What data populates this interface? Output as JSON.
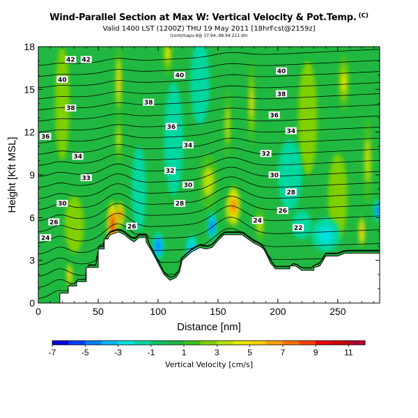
{
  "title": "Wind-Parallel Section at Max W: Vertical Velocity & Pot.Temp.",
  "title_mark": "(C)",
  "subtitle": "Valid 1400 LST (1200Z) THU 19 May 2011 [18hrFcst@2159z]",
  "subtitle_small": "(cont/mapv-9@ 37.94,-98.94 211 dm",
  "chart_data": {
    "type": "heatmap",
    "title": "Wind-Parallel Section at Max W: Vertical Velocity & Pot.Temp.",
    "xlabel": "Distance [nm]",
    "ylabel": "Height [Kft MSL]",
    "xlim": [
      0,
      285
    ],
    "ylim": [
      0,
      18
    ],
    "xticks": [
      0,
      50,
      100,
      150,
      200,
      250
    ],
    "yticks": [
      0,
      3,
      6,
      9,
      12,
      15,
      18
    ],
    "colorbar": {
      "label": "Vertical Velocity [cm/s]",
      "ticks": [
        -7,
        -5,
        -3,
        -1,
        1,
        3,
        5,
        7,
        9,
        11
      ],
      "range": [
        -7,
        12
      ],
      "colors": [
        "#0000e0",
        "#0040ff",
        "#0080ff",
        "#00b8ff",
        "#00e0e0",
        "#00d8a0",
        "#10c060",
        "#20b840",
        "#40c020",
        "#80d000",
        "#b8e000",
        "#e8e800",
        "#ffd000",
        "#ffa000",
        "#ff7000",
        "#ff4000",
        "#e80000",
        "#c80000",
        "#b00030"
      ]
    },
    "terrain": [
      [
        0,
        0
      ],
      [
        18,
        0
      ],
      [
        18,
        0.7
      ],
      [
        25,
        0.7
      ],
      [
        25,
        1.2
      ],
      [
        32,
        1.2
      ],
      [
        32,
        1.5
      ],
      [
        40,
        1.5
      ],
      [
        40,
        2.5
      ],
      [
        50,
        2.5
      ],
      [
        50,
        3.8
      ],
      [
        55,
        3.8
      ],
      [
        55,
        4.5
      ],
      [
        58,
        4.5
      ],
      [
        60,
        4.8
      ],
      [
        67,
        5.0
      ],
      [
        72,
        4.8
      ],
      [
        76,
        4.5
      ],
      [
        80,
        4.3
      ],
      [
        84,
        4.6
      ],
      [
        90,
        4.6
      ],
      [
        90,
        4.3
      ],
      [
        95,
        3.6
      ],
      [
        100,
        2.8
      ],
      [
        105,
        2.0
      ],
      [
        110,
        1.6
      ],
      [
        115,
        1.8
      ],
      [
        118,
        2.2
      ],
      [
        120,
        3.0
      ],
      [
        128,
        3.6
      ],
      [
        135,
        3.9
      ],
      [
        140,
        3.8
      ],
      [
        145,
        3.9
      ],
      [
        150,
        4.4
      ],
      [
        155,
        4.8
      ],
      [
        160,
        4.8
      ],
      [
        170,
        4.8
      ],
      [
        175,
        4.5
      ],
      [
        180,
        4.2
      ],
      [
        185,
        4.0
      ],
      [
        188,
        3.8
      ],
      [
        190,
        3.5
      ],
      [
        194,
        2.8
      ],
      [
        198,
        2.4
      ],
      [
        210,
        2.4
      ],
      [
        210,
        2.6
      ],
      [
        215,
        2.6
      ],
      [
        220,
        2.3
      ],
      [
        230,
        2.3
      ],
      [
        230,
        2.5
      ],
      [
        235,
        2.6
      ],
      [
        240,
        3.3
      ],
      [
        250,
        3.3
      ],
      [
        256,
        3.5
      ],
      [
        285,
        3.5
      ],
      [
        285,
        0
      ]
    ],
    "cells": [
      {
        "x": 62,
        "y": 5.5,
        "rx": 5,
        "ry": 1.8,
        "w": 11
      },
      {
        "x": 68,
        "y": 6.2,
        "rx": 4,
        "ry": 1.0,
        "w": 9
      },
      {
        "x": 163,
        "y": 6.8,
        "rx": 6,
        "ry": 1.6,
        "w": 8
      },
      {
        "x": 160,
        "y": 6.5,
        "rx": 4,
        "ry": 1.0,
        "w": 6
      },
      {
        "x": 26,
        "y": 2.0,
        "rx": 3,
        "ry": 1.0,
        "w": 5
      },
      {
        "x": 67,
        "y": 15.5,
        "rx": 3,
        "ry": 2.5,
        "w": 5
      },
      {
        "x": 67,
        "y": 11.5,
        "rx": 2.5,
        "ry": 1.8,
        "w": 4
      },
      {
        "x": 108,
        "y": 17.5,
        "rx": 4,
        "ry": 1.5,
        "w": 4
      },
      {
        "x": 158,
        "y": 12.5,
        "rx": 3,
        "ry": 2.5,
        "w": 3
      },
      {
        "x": 178,
        "y": 14.0,
        "rx": 3,
        "ry": 3.0,
        "w": 4
      },
      {
        "x": 255,
        "y": 15.5,
        "rx": 5,
        "ry": 2.0,
        "w": 4
      },
      {
        "x": 270,
        "y": 5.0,
        "rx": 3,
        "ry": 1.2,
        "w": 6
      },
      {
        "x": 275,
        "y": 10.0,
        "rx": 4,
        "ry": 3.0,
        "w": 3
      },
      {
        "x": 185,
        "y": 5.5,
        "rx": 4,
        "ry": 1.2,
        "w": 3
      },
      {
        "x": 142,
        "y": 8.5,
        "rx": 8,
        "ry": 2.0,
        "w": 3
      },
      {
        "x": 30,
        "y": 5.5,
        "rx": 8,
        "ry": 2.0,
        "w": 2
      },
      {
        "x": 250,
        "y": 7.5,
        "rx": 8,
        "ry": 3.0,
        "w": 2
      },
      {
        "x": 20,
        "y": 14.0,
        "rx": 6,
        "ry": 4.0,
        "w": 2
      },
      {
        "x": 225,
        "y": 13.0,
        "rx": 8,
        "ry": 4.0,
        "w": 2
      },
      {
        "x": 100,
        "y": 4.0,
        "rx": 5,
        "ry": 1.0,
        "w": -5
      },
      {
        "x": 128,
        "y": 3.8,
        "rx": 5,
        "ry": 1.0,
        "w": -4
      },
      {
        "x": 145,
        "y": 5.4,
        "rx": 4,
        "ry": 1.0,
        "w": -5
      },
      {
        "x": 113,
        "y": 11.5,
        "rx": 8,
        "ry": 4.0,
        "w": -2
      },
      {
        "x": 210,
        "y": 9.0,
        "rx": 10,
        "ry": 2.5,
        "w": -2
      },
      {
        "x": 240,
        "y": 4.8,
        "rx": 12,
        "ry": 1.2,
        "w": -3
      },
      {
        "x": 220,
        "y": 5.5,
        "rx": 8,
        "ry": 1.0,
        "w": -2
      },
      {
        "x": 135,
        "y": 15.5,
        "rx": 8,
        "ry": 3.0,
        "w": -1.5
      },
      {
        "x": 84,
        "y": 8.0,
        "rx": 6,
        "ry": 3.0,
        "w": -1.5
      },
      {
        "x": 283,
        "y": 6.5,
        "rx": 3,
        "ry": 0.8,
        "w": -6
      }
    ],
    "theta_base": 24,
    "theta_interval": 1,
    "theta_labels": [
      {
        "value": 42,
        "x": 27,
        "y": 17.1
      },
      {
        "value": 42,
        "x": 40,
        "y": 17.1
      },
      {
        "value": 40,
        "x": 20,
        "y": 15.7
      },
      {
        "value": 40,
        "x": 118,
        "y": 16.0
      },
      {
        "value": 40,
        "x": 203,
        "y": 16.3
      },
      {
        "value": 38,
        "x": 27,
        "y": 13.7
      },
      {
        "value": 38,
        "x": 92,
        "y": 14.1
      },
      {
        "value": 38,
        "x": 203,
        "y": 14.7
      },
      {
        "value": 36,
        "x": 6,
        "y": 11.7
      },
      {
        "value": 36,
        "x": 111,
        "y": 12.4
      },
      {
        "value": 36,
        "x": 197,
        "y": 13.2
      },
      {
        "value": 34,
        "x": 33,
        "y": 10.3
      },
      {
        "value": 34,
        "x": 125,
        "y": 11.1
      },
      {
        "value": 34,
        "x": 211,
        "y": 12.1
      },
      {
        "value": 33,
        "x": 40,
        "y": 8.8
      },
      {
        "value": 32,
        "x": 110,
        "y": 9.3
      },
      {
        "value": 32,
        "x": 190,
        "y": 10.5
      },
      {
        "value": 30,
        "x": 20,
        "y": 7.0
      },
      {
        "value": 30,
        "x": 125,
        "y": 8.3
      },
      {
        "value": 30,
        "x": 197,
        "y": 9.0
      },
      {
        "value": 28,
        "x": 118,
        "y": 7.0
      },
      {
        "value": 28,
        "x": 211,
        "y": 7.8
      },
      {
        "value": 26,
        "x": 13,
        "y": 5.7
      },
      {
        "value": 26,
        "x": 204,
        "y": 6.5
      },
      {
        "value": 26,
        "x": 78,
        "y": 5.4
      },
      {
        "value": 24,
        "x": 6,
        "y": 4.6
      },
      {
        "value": 24,
        "x": 183,
        "y": 5.8
      },
      {
        "value": 22,
        "x": 217,
        "y": 5.3
      }
    ]
  }
}
